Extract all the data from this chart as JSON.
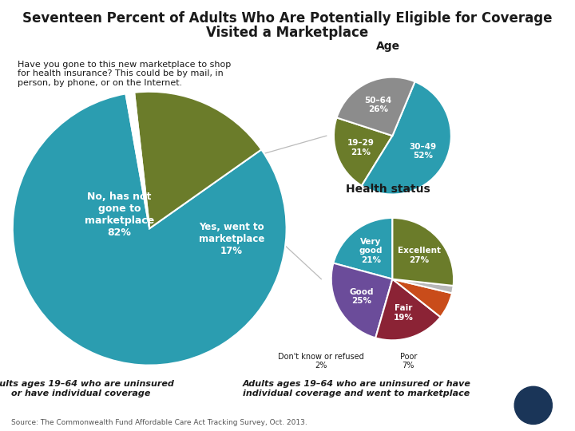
{
  "title_line1": "Seventeen Percent of Adults Who Are Potentially Eligible for Coverage",
  "title_line2": "Visited a Marketplace",
  "subtitle": "Have you gone to this new marketplace to shop\nfor health insurance? This could be by mail, in\nperson, by phone, or on the Internet.",
  "main_pie": {
    "sizes": [
      82,
      17,
      1
    ],
    "colors": [
      "#2B9DB0",
      "#6B7C2A",
      "#FFFFFF"
    ],
    "startangle": 100
  },
  "age_pie": {
    "title": "Age",
    "labels": [
      "19–29\n21%",
      "30–49\n52%",
      "50–64\n26%"
    ],
    "sizes": [
      21,
      52,
      26
    ],
    "colors": [
      "#6B7C2A",
      "#2B9DB0",
      "#8C8C8C"
    ],
    "startangle": 162
  },
  "health_pie": {
    "title": "Health status",
    "labels_inside": [
      "Very\ngood\n21%",
      "Good\n25%",
      "Fair\n19%",
      "Poor\n7%",
      "Don't know\nor refused\n2%",
      "Excellent\n27%"
    ],
    "sizes": [
      21,
      25,
      19,
      7,
      2,
      27
    ],
    "colors": [
      "#2B9DB0",
      "#6B4C9A",
      "#8B2335",
      "#C94C1A",
      "#B8B8B8",
      "#6B7C2A"
    ],
    "startangle": 90
  },
  "source": "Source: The Commonwealth Fund Affordable Care Act Tracking Survey, Oct. 2013.",
  "bg_color": "#FFFFFF",
  "text_color": "#1A1A1A",
  "line_color": "#AAAAAA",
  "logo_bg": "#1A3558"
}
